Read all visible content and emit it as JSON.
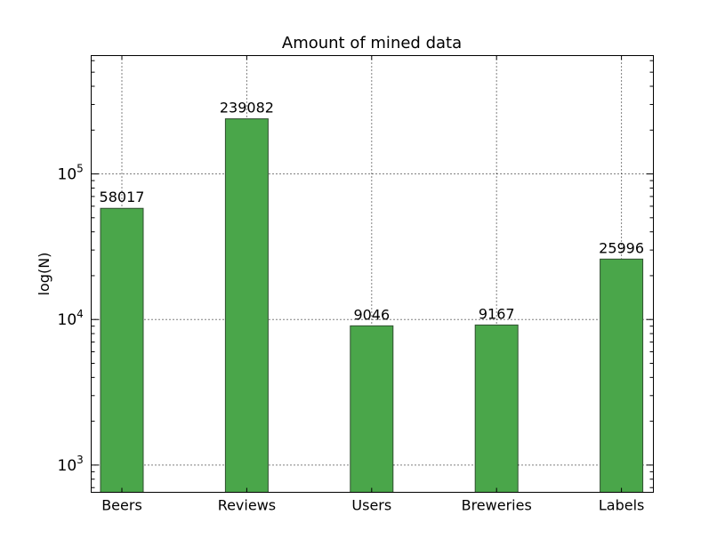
{
  "chart_data": {
    "type": "bar",
    "title": "Amount of mined data",
    "xlabel": "",
    "ylabel": "log(N)",
    "yscale": "log",
    "ylim": [
      650,
      650000
    ],
    "grid": true,
    "categories": [
      "Beers",
      "Reviews",
      "Users",
      "Breweries",
      "Labels"
    ],
    "values": [
      58017,
      239082,
      9046,
      9167,
      25996
    ],
    "data_labels": [
      "58017",
      "239082",
      "9046",
      "9167",
      "25996"
    ],
    "y_major_ticks": [
      {
        "value": 1000,
        "base": "10",
        "exp": "3"
      },
      {
        "value": 10000,
        "base": "10",
        "exp": "4"
      },
      {
        "value": 100000,
        "base": "10",
        "exp": "5"
      }
    ],
    "bar_color": "#4aa64a",
    "bar_edge_color": "#2f4f2f"
  }
}
